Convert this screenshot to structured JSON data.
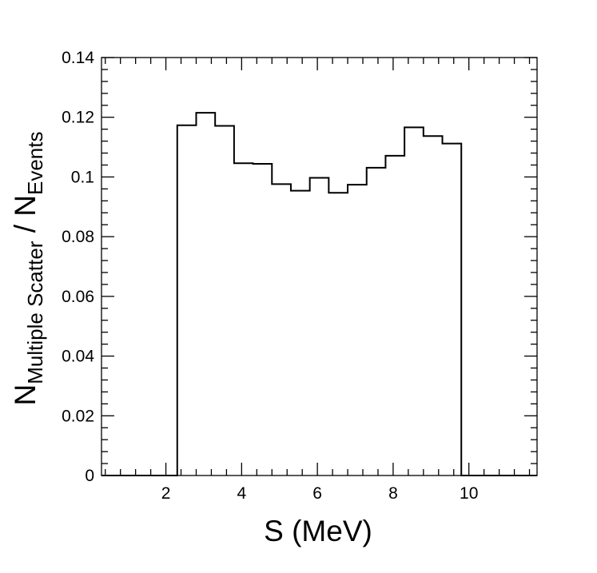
{
  "chart_data": {
    "type": "bar",
    "style": "step-histogram",
    "title": "",
    "xlabel": "S (MeV)",
    "ylabel_main": "N",
    "ylabel_sub1": "Multiple Scatter",
    "ylabel_sep": " / N",
    "ylabel_sub2": "Events",
    "xlim": [
      0.3,
      11.8
    ],
    "ylim": [
      0,
      0.14
    ],
    "x_ticks": [
      2,
      4,
      6,
      8,
      10
    ],
    "x_tick_labels": [
      "2",
      "4",
      "6",
      "8",
      "10"
    ],
    "y_ticks": [
      0,
      0.02,
      0.04,
      0.06,
      0.08,
      0.1,
      0.12,
      0.14
    ],
    "y_tick_labels": [
      "0",
      "0.02",
      "0.04",
      "0.06",
      "0.08",
      "0.1",
      "0.12",
      "0.14"
    ],
    "bin_edges": [
      0.3,
      0.8,
      1.3,
      1.8,
      2.3,
      2.8,
      3.3,
      3.8,
      4.3,
      4.8,
      5.3,
      5.8,
      6.3,
      6.8,
      7.3,
      7.8,
      8.3,
      8.8,
      9.3,
      9.8,
      10.3,
      10.8,
      11.3,
      11.8
    ],
    "values": [
      0,
      0,
      0,
      0,
      0.1173,
      0.1215,
      0.1171,
      0.1046,
      0.1044,
      0.0976,
      0.0954,
      0.0997,
      0.0947,
      0.0974,
      0.1031,
      0.1071,
      0.1166,
      0.1137,
      0.1112,
      0,
      0,
      0,
      0
    ],
    "grid": false,
    "line_color": "#000000"
  }
}
